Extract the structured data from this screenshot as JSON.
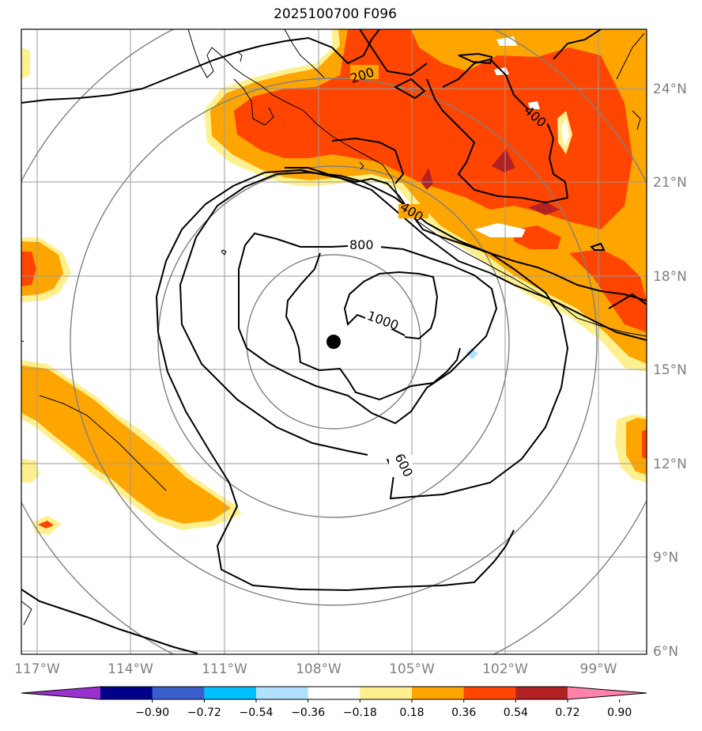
{
  "title": "2025100700 F096",
  "map": {
    "lon_labels": [
      "117°W",
      "114°W",
      "111°W",
      "108°W",
      "105°W",
      "102°W",
      "99°W"
    ],
    "lat_labels": [
      "24°N",
      "21°N",
      "18°N",
      "15°N",
      "12°N",
      "9°N",
      "6°N"
    ],
    "lon_values": [
      -117,
      -114,
      -111,
      -108,
      -105,
      -102,
      -99
    ],
    "lat_values": [
      24,
      21,
      18,
      15,
      12,
      9,
      6
    ],
    "extent": {
      "lon_min": -117.5,
      "lon_max": -97.6,
      "lat_min": 6.0,
      "lat_max": 26.0
    },
    "storm_center": {
      "lon": -107.5,
      "lat": 15.9
    },
    "contour_labels": [
      "200",
      "400",
      "400",
      "800",
      "1000",
      "600"
    ]
  },
  "colorbar": {
    "tick_labels": [
      "−0.90",
      "−0.72",
      "−0.54",
      "−0.36",
      "−0.18",
      "0.18",
      "0.36",
      "0.54",
      "0.72",
      "0.90"
    ],
    "colors": [
      "#9932cc",
      "#00008b",
      "#3a5fcd",
      "#00bfff",
      "#b0e2ff",
      "#ffffff",
      "#fff08f",
      "#ffa500",
      "#ff4500",
      "#b22222",
      "#ff82ab"
    ]
  }
}
